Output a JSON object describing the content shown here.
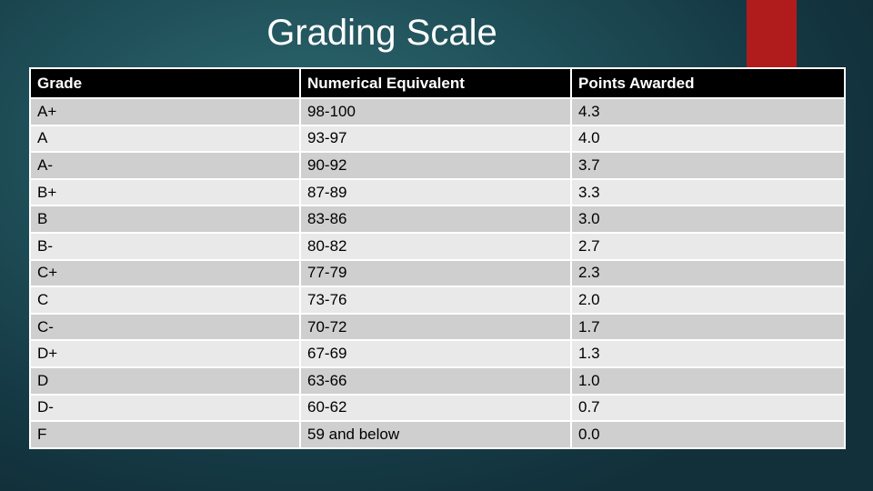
{
  "slide": {
    "title": "Grading Scale",
    "accent_color": "#b01c1c"
  },
  "table": {
    "headers": [
      "Grade",
      "Numerical Equivalent",
      "Points Awarded"
    ],
    "rows": [
      [
        "A+",
        "98-100",
        "4.3"
      ],
      [
        "A",
        "93-97",
        "4.0"
      ],
      [
        "A-",
        "90-92",
        "3.7"
      ],
      [
        "B+",
        "87-89",
        "3.3"
      ],
      [
        "B",
        "83-86",
        "3.0"
      ],
      [
        "B-",
        "80-82",
        "2.7"
      ],
      [
        "C+",
        "77-79",
        "2.3"
      ],
      [
        "C",
        "73-76",
        "2.0"
      ],
      [
        "C-",
        "70-72",
        "1.7"
      ],
      [
        "D+",
        "67-69",
        "1.3"
      ],
      [
        "D",
        "63-66",
        "1.0"
      ],
      [
        "D-",
        "60-62",
        "0.7"
      ],
      [
        "F",
        "59 and below",
        "0.0"
      ]
    ]
  }
}
